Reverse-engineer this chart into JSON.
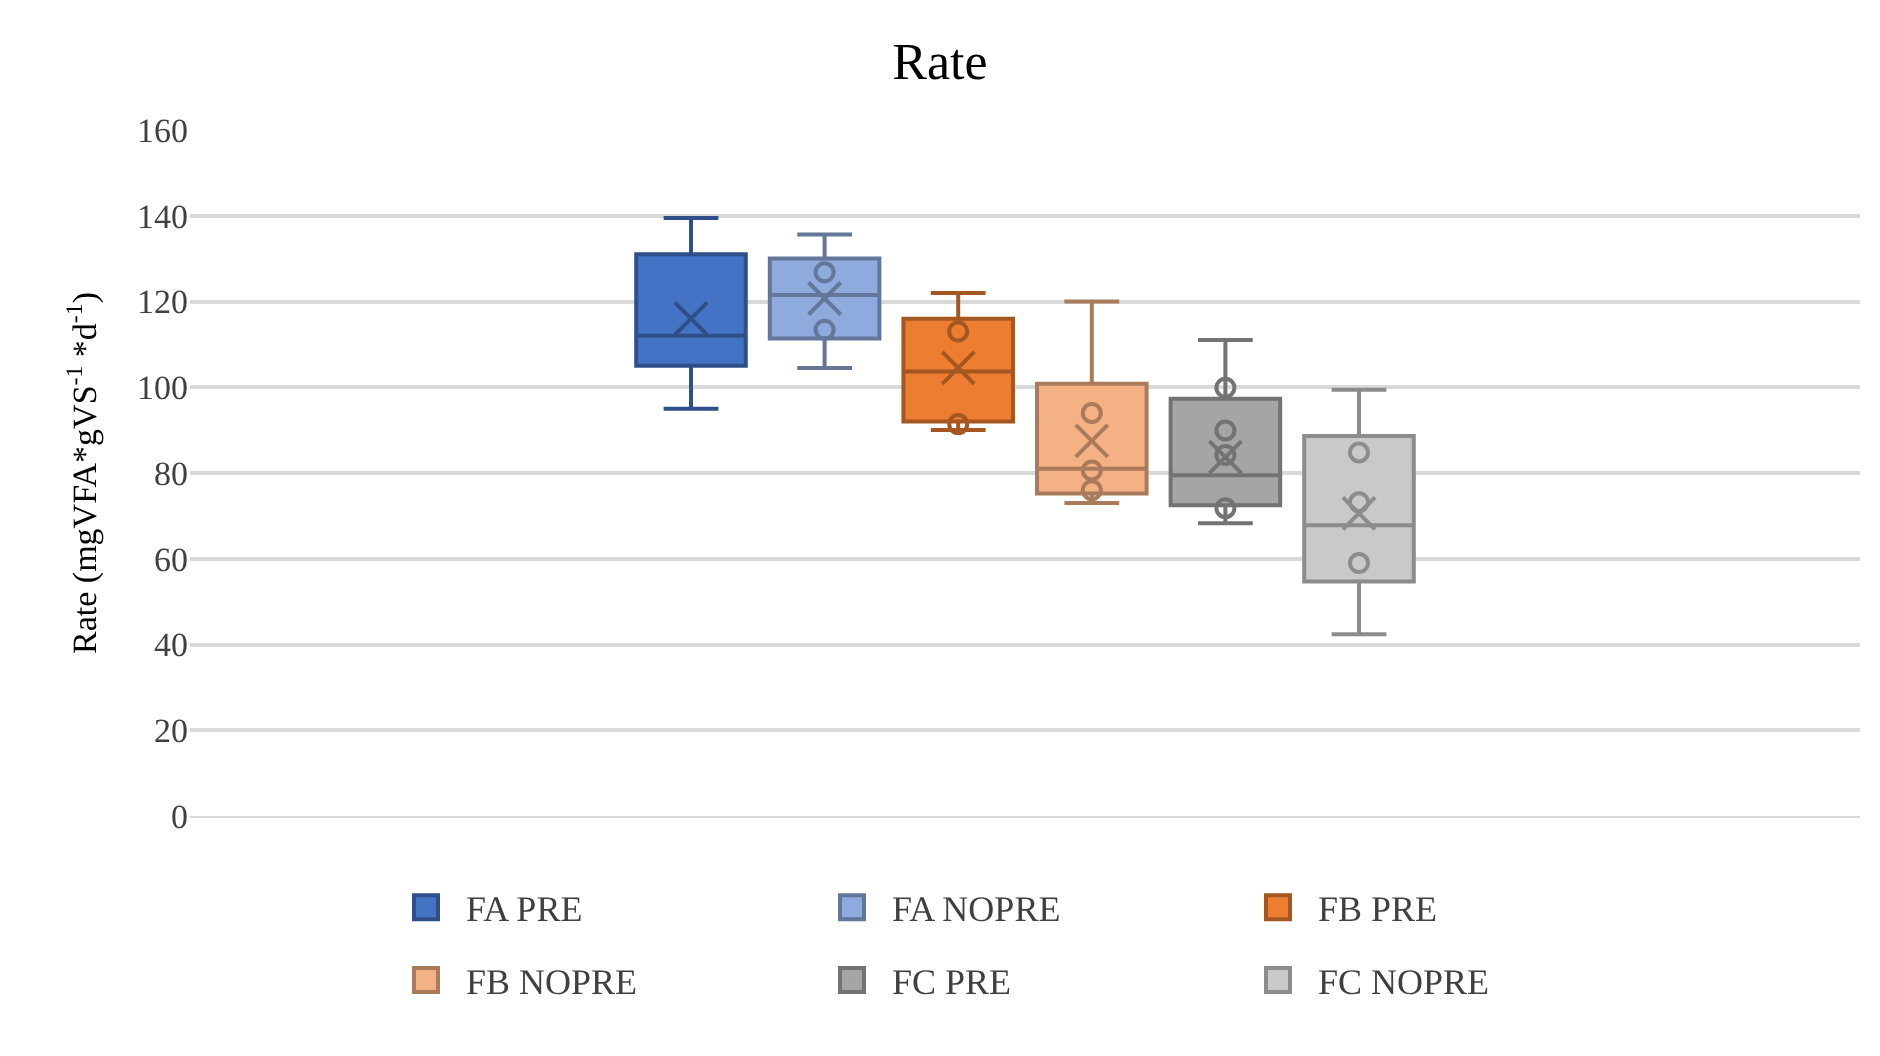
{
  "chart_data": {
    "type": "box",
    "title": "Rate",
    "ylabel": "Rate (mgVFA*gVS$^{-1}$ *d$^{-1}$)",
    "categories": [
      null
    ],
    "ylim": [
      0,
      160
    ],
    "yticks": [
      0,
      20,
      40,
      60,
      80,
      100,
      120,
      140,
      160
    ],
    "grid": "y",
    "legend": "bottom",
    "tick_labels": "y",
    "series": [
      {
        "name": "FA PRE",
        "color": "#4472c4",
        "boxes": [
          {
            "low": 95,
            "q1": 105,
            "median": 112,
            "q3": 131,
            "high": 139.5,
            "mean": 116
          }
        ]
      },
      {
        "name": "FA NOPRE",
        "color": "#8faadc",
        "boxes": [
          {
            "low": 104.5,
            "q1": 111.4,
            "median": 121.5,
            "q3": 130,
            "high": 135.6,
            "mean": 120.7,
            "outliers": [
              126.8,
              113.4
            ]
          }
        ]
      },
      {
        "name": "FB PRE",
        "color": "#ed7d31",
        "boxes": [
          {
            "low": 90,
            "q1": 92,
            "median": 103.7,
            "q3": 116,
            "high": 122,
            "mean": 104.5,
            "outliers": [
              113,
              91.4
            ]
          }
        ]
      },
      {
        "name": "FB NOPRE",
        "color": "#f4b183",
        "boxes": [
          {
            "low": 73,
            "q1": 75.2,
            "median": 81,
            "q3": 100.8,
            "high": 120,
            "mean": 87.5,
            "outliers": [
              94,
              80.6,
              76
            ]
          }
        ]
      },
      {
        "name": "FC PRE",
        "color": "#a5a5a5",
        "boxes": [
          {
            "low": 68.3,
            "q1": 72.5,
            "median": 79.5,
            "q3": 97.3,
            "high": 111,
            "mean": 83.7,
            "outliers": [
              99.9,
              89.9,
              84.2,
              71.8
            ]
          }
        ]
      },
      {
        "name": "FC NOPRE",
        "color": "#c9c9c9",
        "boxes": [
          {
            "low": 42.4,
            "q1": 54.7,
            "median": 67.8,
            "q3": 88.6,
            "high": 99.4,
            "mean": 70.6,
            "outliers": [
              84.8,
              73.2,
              59
            ]
          }
        ]
      }
    ]
  }
}
